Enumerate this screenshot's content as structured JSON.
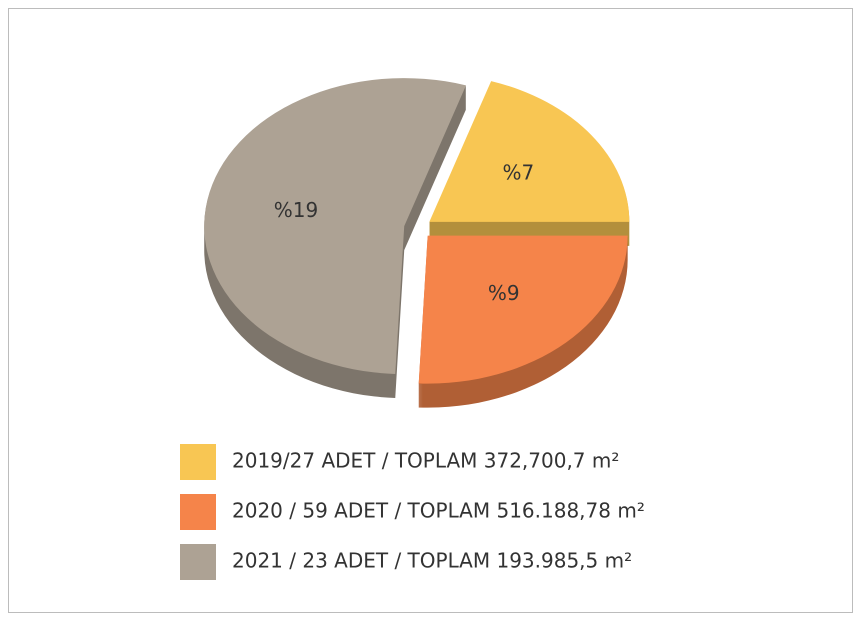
{
  "chart_data": {
    "type": "pie",
    "categories": [
      "2019/27 ADET / TOPLAM 372,700,7 m²",
      "2020 / 59 ADET / TOPLAM 516.188,78 m²",
      "2021 / 23 ADET / TOPLAM 193.985,5 m²"
    ],
    "values": [
      7,
      9,
      19
    ],
    "value_labels": [
      "%7",
      "%9",
      "%19"
    ],
    "colors": [
      "#f8c653",
      "#f5844a",
      "#ada294"
    ],
    "legend": "bottom"
  }
}
